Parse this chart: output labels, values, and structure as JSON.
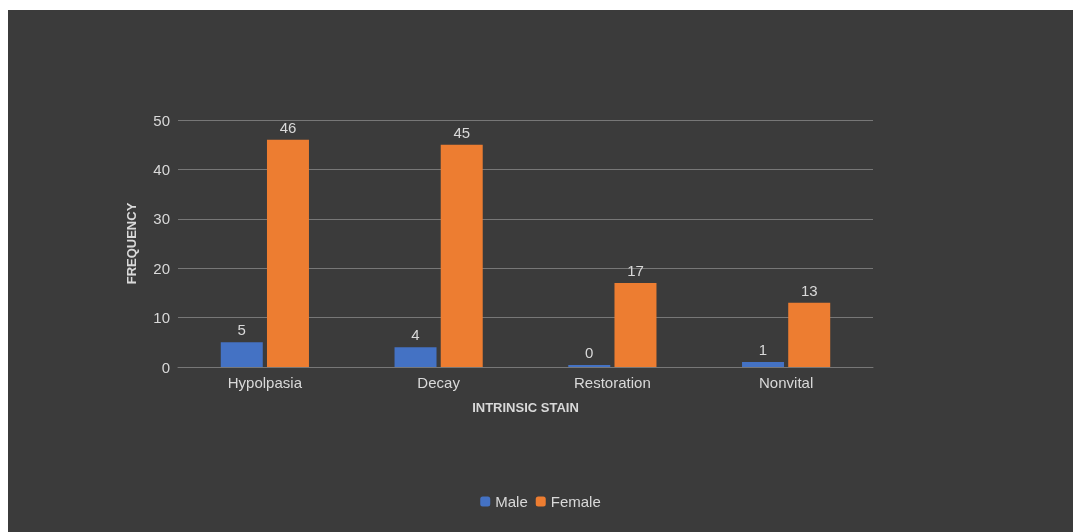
{
  "chart_data": {
    "type": "bar",
    "xlabel": "INTRINSIC STAIN",
    "ylabel": "FREQUENCY",
    "categories": [
      "Hypolpasia",
      "Decay",
      "Restoration",
      "Nonvital"
    ],
    "series": [
      {
        "name": "Male",
        "color": "#4472c4",
        "values": [
          5,
          4,
          0,
          1
        ]
      },
      {
        "name": "Female",
        "color": "#ed7d31",
        "values": [
          46,
          45,
          17,
          13
        ]
      }
    ],
    "ylim": [
      0,
      50
    ],
    "yticks": [
      0,
      10,
      20,
      30,
      40,
      50
    ],
    "grid": "y",
    "legend": "bottom",
    "data_labels": true
  }
}
